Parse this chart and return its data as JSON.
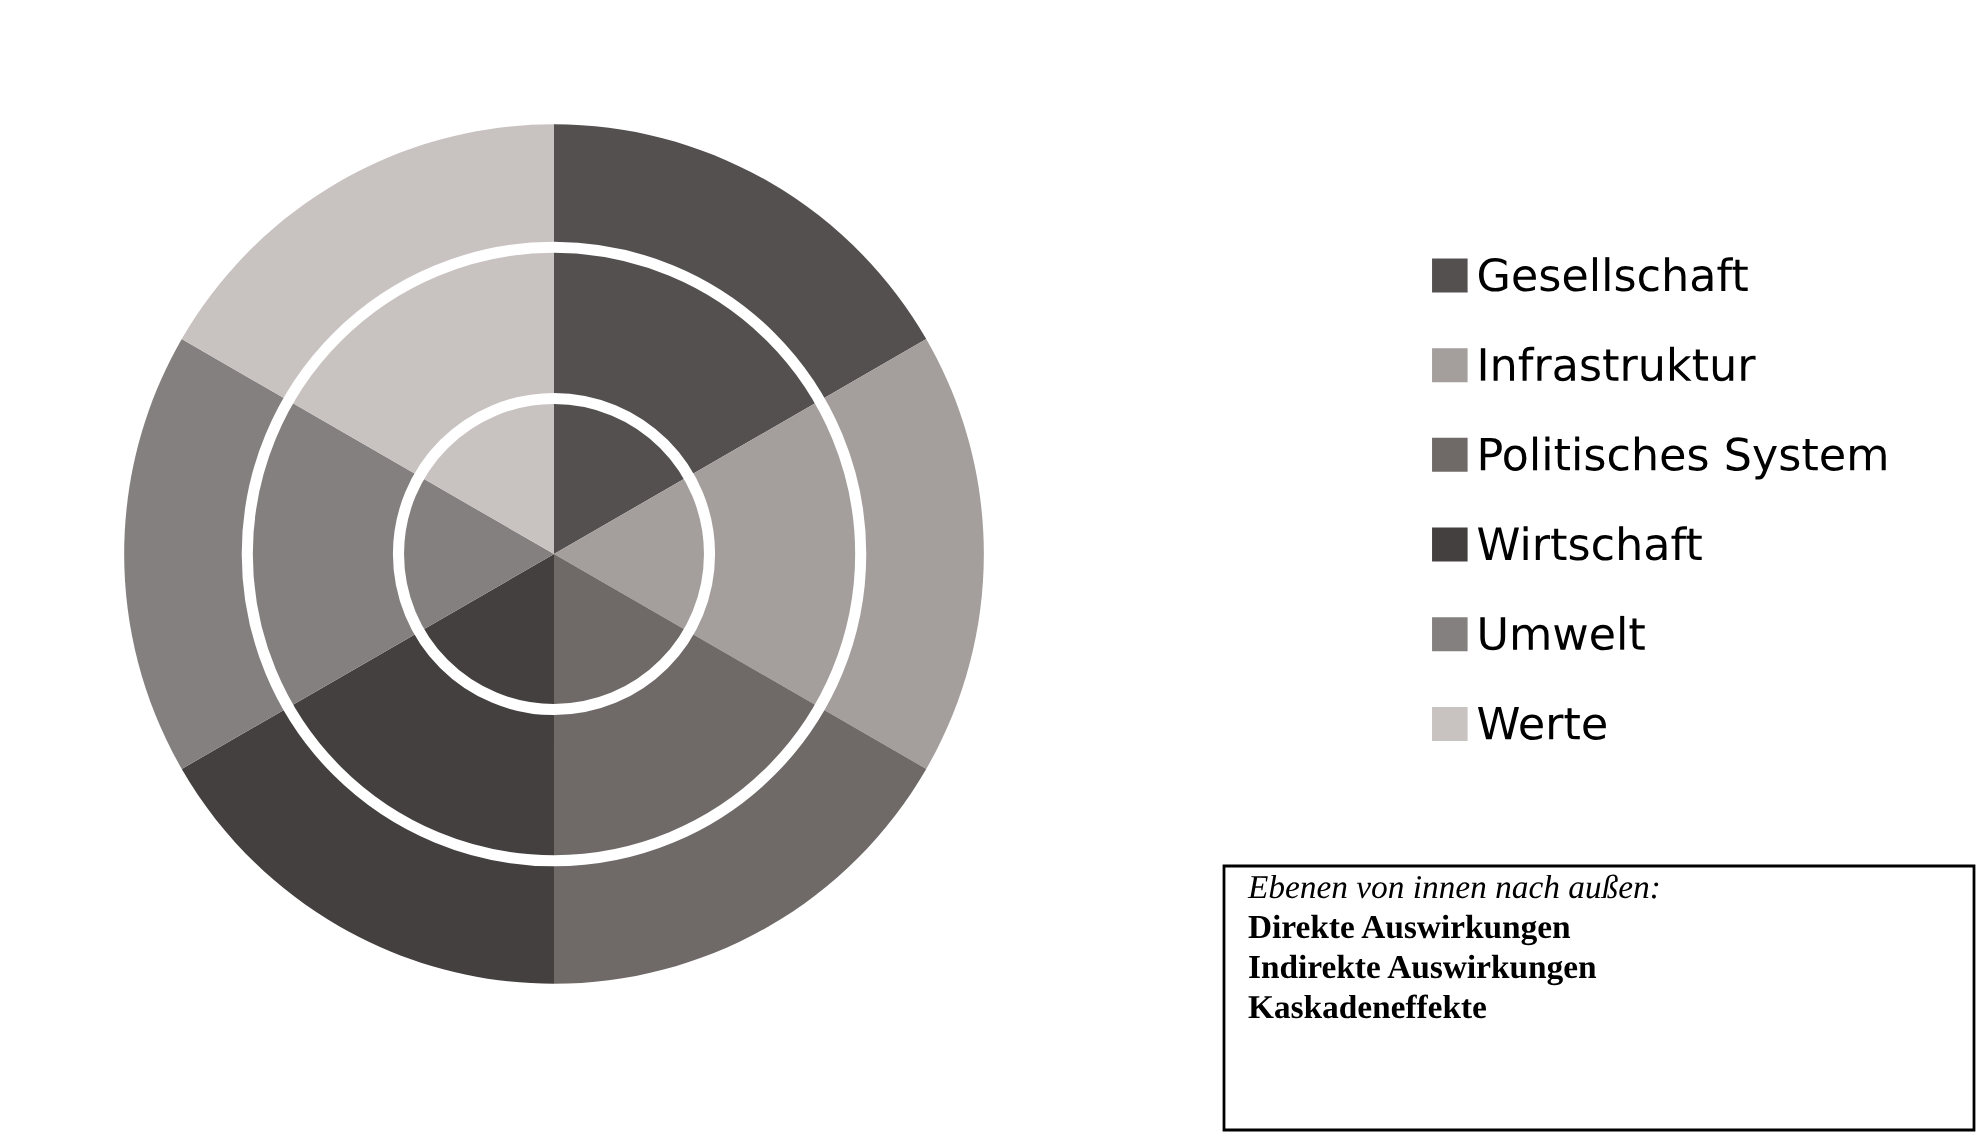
{
  "chart_data": {
    "type": "pie",
    "categories": [
      "Gesellschaft",
      "Infrastruktur",
      "Politisches System",
      "Wirtschaft",
      "Umwelt",
      "Werte"
    ],
    "values": [
      16.67,
      16.67,
      16.67,
      16.67,
      16.67,
      16.67
    ],
    "colors": [
      "#545050",
      "#a49e9c",
      "#6f6a68",
      "#444040",
      "#858080",
      "#c8c2c0"
    ],
    "legend": "right",
    "annotations": [
      "Ebenen von innen nach außen:",
      "Direkte Auswirkungen",
      "Indirekte Auswirkungen",
      "Kaskadeneffekte"
    ]
  }
}
